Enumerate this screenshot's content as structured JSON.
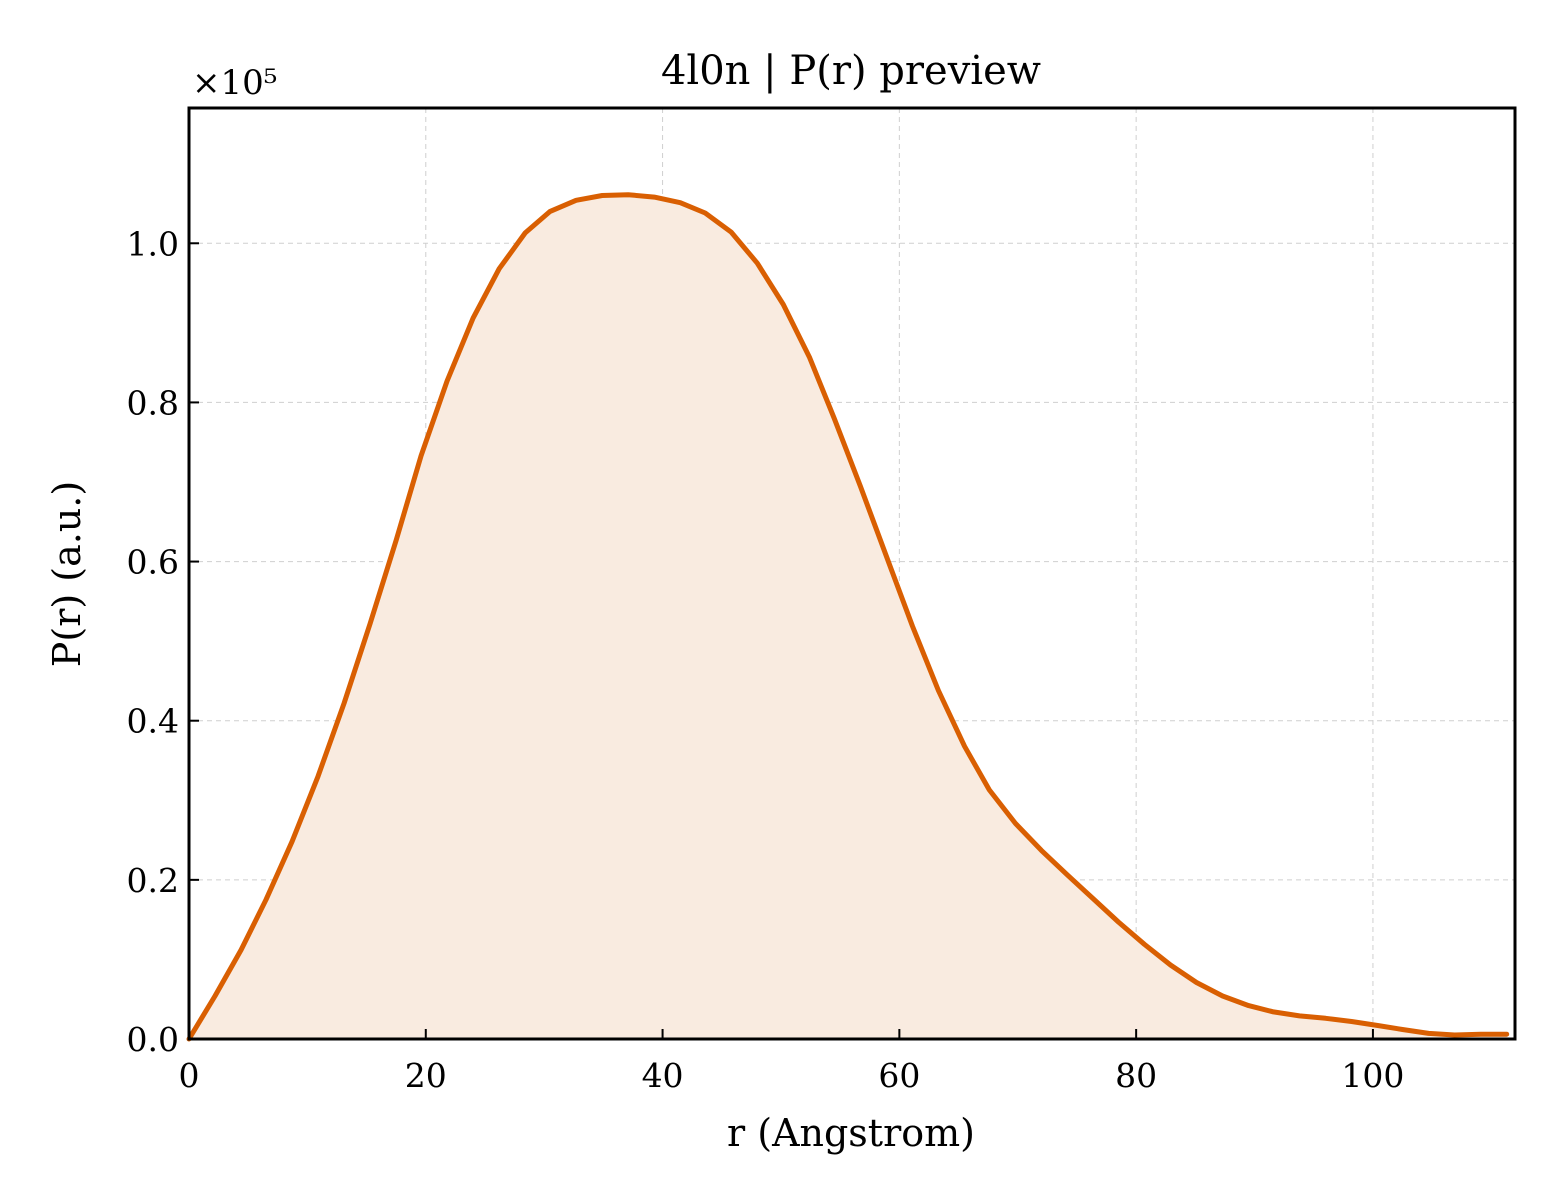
{
  "chart_data": {
    "type": "area",
    "title": "4l0n | P(r) preview",
    "xlabel": "r (Angstrom)",
    "ylabel": "P(r) (a.u.)",
    "y_offset_label": "×10⁵",
    "xlim": [
      0,
      112
    ],
    "ylim": [
      0,
      1.17
    ],
    "xticks": [
      0,
      20,
      40,
      60,
      80,
      100
    ],
    "xtick_labels": [
      "0",
      "20",
      "40",
      "60",
      "80",
      "100"
    ],
    "yticks": [
      0.0,
      0.2,
      0.4,
      0.6,
      0.8,
      1.0
    ],
    "ytick_labels": [
      "0.0",
      "0.2",
      "0.4",
      "0.6",
      "0.8",
      "1.0"
    ],
    "grid": true,
    "line_color": "#d95f02",
    "fill_color": "#f9ebe0",
    "series": [
      {
        "x": [
          0,
          2.2,
          4.4,
          6.5,
          8.7,
          10.9,
          13.1,
          15.3,
          17.5,
          19.6,
          21.8,
          24.0,
          26.2,
          28.4,
          30.5,
          32.7,
          34.9,
          37.1,
          39.3,
          41.5,
          43.6,
          45.8,
          48.0,
          50.2,
          52.4,
          54.5,
          56.7,
          58.9,
          61.1,
          63.3,
          65.5,
          67.6,
          69.8,
          72.0,
          74.2,
          76.4,
          78.5,
          80.7,
          82.9,
          85.1,
          87.3,
          89.5,
          91.6,
          93.8,
          96.0,
          98.2,
          100.4,
          102.5,
          104.7,
          106.9,
          109.1,
          111.3
        ],
        "y": [
          0.0,
          0.054,
          0.112,
          0.175,
          0.248,
          0.33,
          0.422,
          0.522,
          0.627,
          0.733,
          0.827,
          0.906,
          0.968,
          1.013,
          1.04,
          1.054,
          1.06,
          1.061,
          1.058,
          1.051,
          1.038,
          1.014,
          0.975,
          0.923,
          0.857,
          0.78,
          0.695,
          0.607,
          0.519,
          0.438,
          0.368,
          0.313,
          0.271,
          0.237,
          0.206,
          0.176,
          0.147,
          0.119,
          0.093,
          0.071,
          0.054,
          0.042,
          0.034,
          0.029,
          0.026,
          0.022,
          0.017,
          0.012,
          0.007,
          0.005,
          0.006,
          0.006
        ]
      }
    ]
  }
}
